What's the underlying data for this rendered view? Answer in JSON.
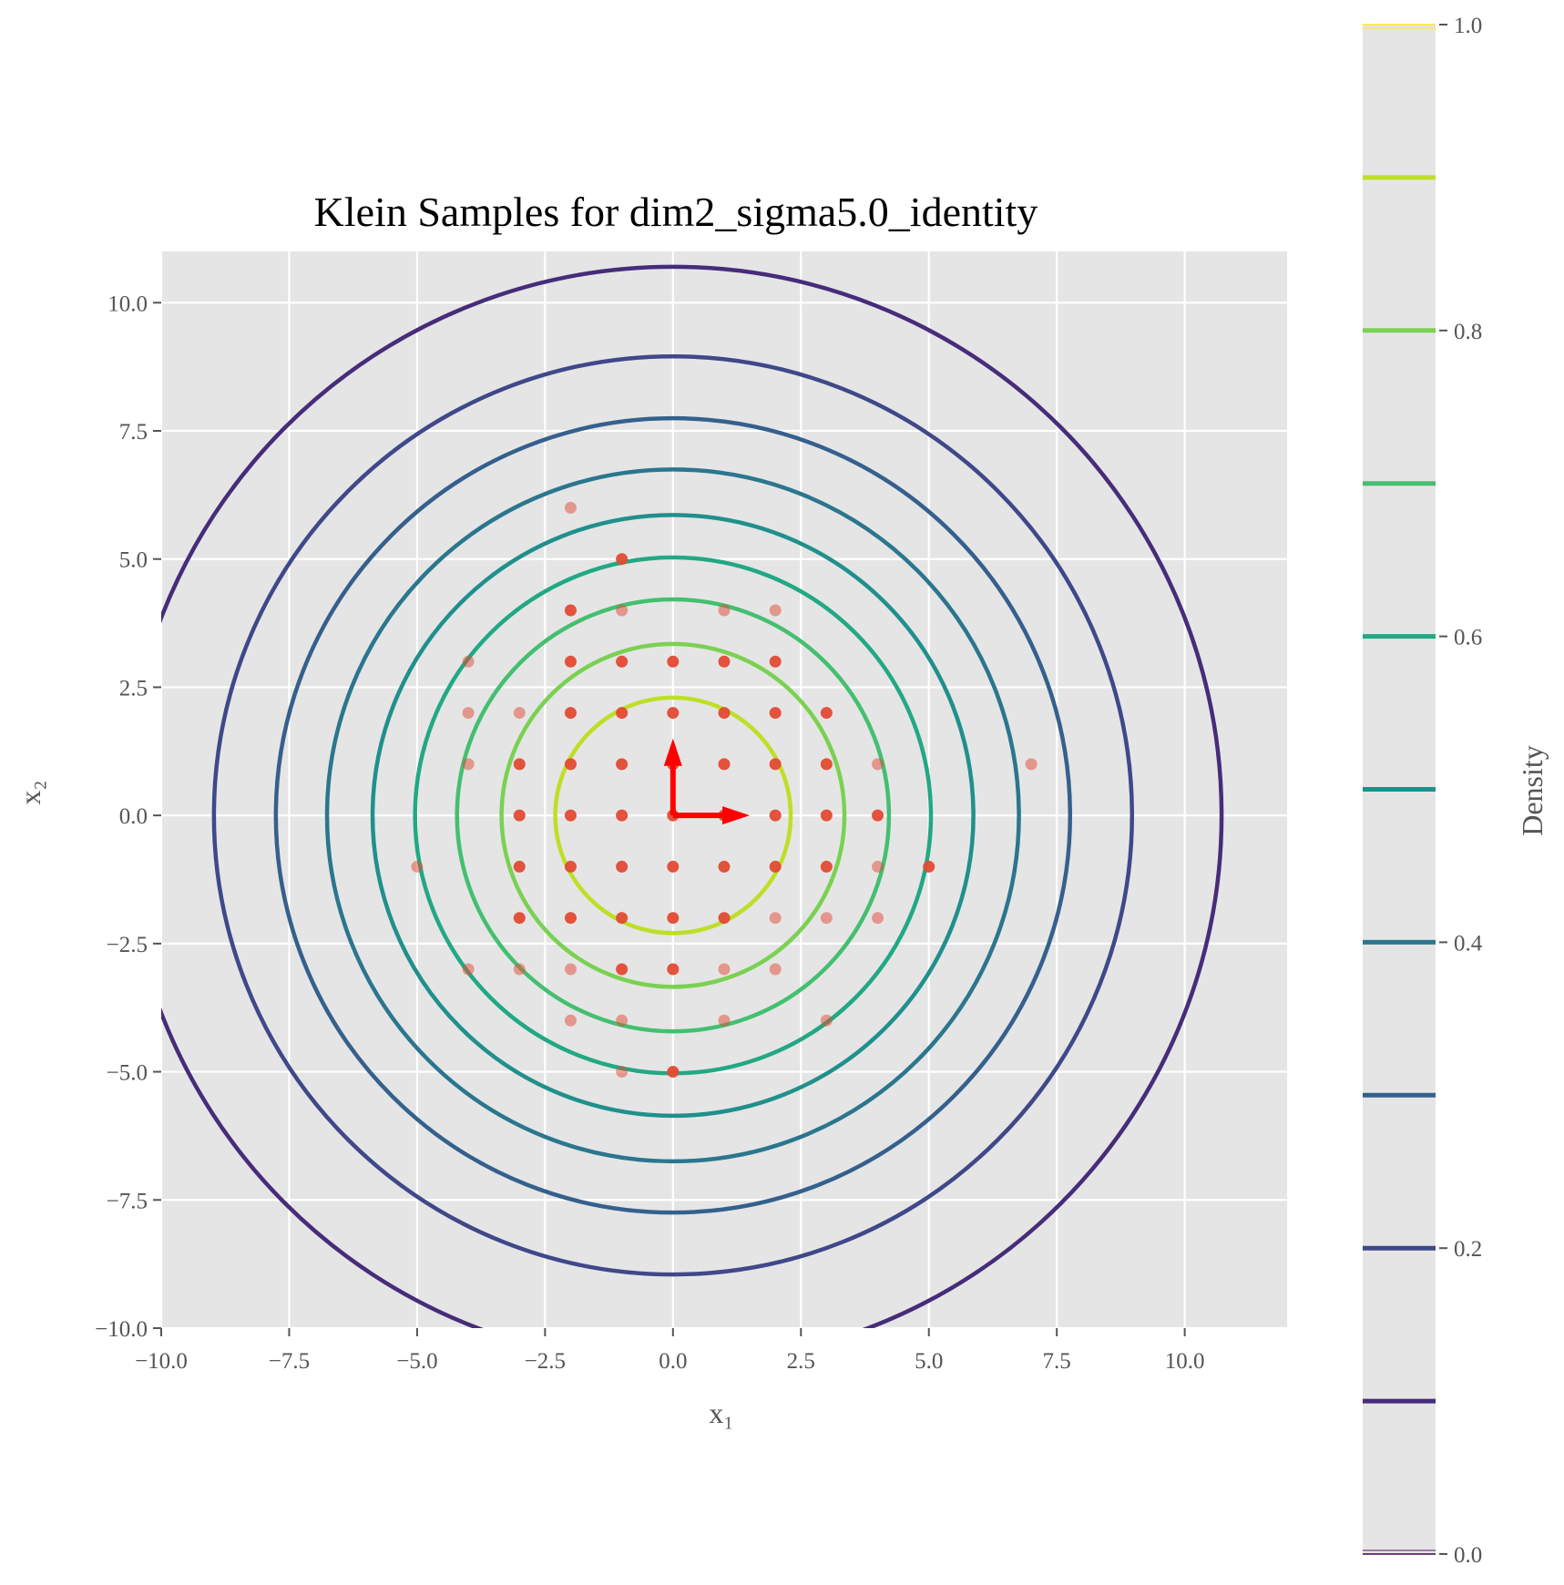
{
  "chart_data": {
    "type": "scatter",
    "title": "Klein Samples for dim2_sigma5.0_identity",
    "xlabel": "x₁",
    "ylabel": "x₂",
    "xlim": [
      -10,
      12
    ],
    "ylim": [
      -10,
      11
    ],
    "xticks": [
      "−10.0",
      "−7.5",
      "−5.0",
      "−2.5",
      "0.0",
      "2.5",
      "5.0",
      "7.5",
      "10.0"
    ],
    "yticks": [
      "−10.0",
      "−7.5",
      "−5.0",
      "−2.5",
      "0.0",
      "2.5",
      "5.0",
      "7.5",
      "10.0"
    ],
    "grid": true,
    "samples": {
      "color": "#e24a33",
      "dark": [
        [
          -1,
          5
        ],
        [
          -2,
          4
        ],
        [
          -2,
          3
        ],
        [
          -1,
          3
        ],
        [
          0,
          3
        ],
        [
          1,
          3
        ],
        [
          2,
          3
        ],
        [
          -2,
          2
        ],
        [
          -1,
          2
        ],
        [
          0,
          2
        ],
        [
          1,
          2
        ],
        [
          2,
          2
        ],
        [
          3,
          2
        ],
        [
          -3,
          1
        ],
        [
          -2,
          1
        ],
        [
          -1,
          1
        ],
        [
          0,
          1
        ],
        [
          1,
          1
        ],
        [
          2,
          1
        ],
        [
          3,
          1
        ],
        [
          -3,
          0
        ],
        [
          -2,
          0
        ],
        [
          -1,
          0
        ],
        [
          0,
          0
        ],
        [
          1,
          0
        ],
        [
          2,
          0
        ],
        [
          3,
          0
        ],
        [
          4,
          0
        ],
        [
          -3,
          -1
        ],
        [
          -2,
          -1
        ],
        [
          -1,
          -1
        ],
        [
          0,
          -1
        ],
        [
          1,
          -1
        ],
        [
          2,
          -1
        ],
        [
          3,
          -1
        ],
        [
          5,
          -1
        ],
        [
          -3,
          -2
        ],
        [
          -2,
          -2
        ],
        [
          -1,
          -2
        ],
        [
          0,
          -2
        ],
        [
          1,
          -2
        ],
        [
          -1,
          -3
        ],
        [
          0,
          -3
        ],
        [
          0,
          -5
        ]
      ],
      "light": [
        [
          -2,
          6
        ],
        [
          -1,
          4
        ],
        [
          1,
          4
        ],
        [
          2,
          4
        ],
        [
          -4,
          3
        ],
        [
          -4,
          2
        ],
        [
          -3,
          2
        ],
        [
          -4,
          1
        ],
        [
          4,
          1
        ],
        [
          7,
          1
        ],
        [
          -5,
          -1
        ],
        [
          4,
          -1
        ],
        [
          2,
          -2
        ],
        [
          3,
          -2
        ],
        [
          4,
          -2
        ],
        [
          -4,
          -3
        ],
        [
          -3,
          -3
        ],
        [
          -2,
          -3
        ],
        [
          1,
          -3
        ],
        [
          2,
          -3
        ],
        [
          -2,
          -4
        ],
        [
          -1,
          -4
        ],
        [
          1,
          -4
        ],
        [
          3,
          -4
        ],
        [
          -1,
          -5
        ]
      ]
    },
    "basis_vectors": {
      "color": "#ff0000",
      "vectors": [
        [
          1.5,
          0
        ],
        [
          0,
          1.5
        ]
      ]
    },
    "contours": {
      "center": [
        0,
        0
      ],
      "levels": [
        0.1,
        0.2,
        0.3,
        0.4,
        0.5,
        0.6,
        0.7,
        0.8,
        0.9
      ],
      "radii": [
        10.72,
        8.97,
        7.76,
        6.76,
        5.87,
        5.04,
        4.22,
        3.35,
        2.3
      ],
      "colors": [
        "#472c7a",
        "#3f4889",
        "#35608d",
        "#2b768e",
        "#20908c",
        "#22a884",
        "#44bf70",
        "#7ad151",
        "#bddf26"
      ]
    },
    "colorbar": {
      "label": "Density",
      "ticks": [
        "0.0",
        "0.2",
        "0.4",
        "0.6",
        "0.8",
        "1.0"
      ],
      "range": [
        0,
        1
      ],
      "edge_lines": [
        {
          "value": 0,
          "color": "#440154"
        },
        {
          "value": 1,
          "color": "#fde725"
        }
      ]
    },
    "colors": {
      "plot_background": "#e5e5e5",
      "grid": "#ffffff",
      "tick": "#555555"
    }
  }
}
